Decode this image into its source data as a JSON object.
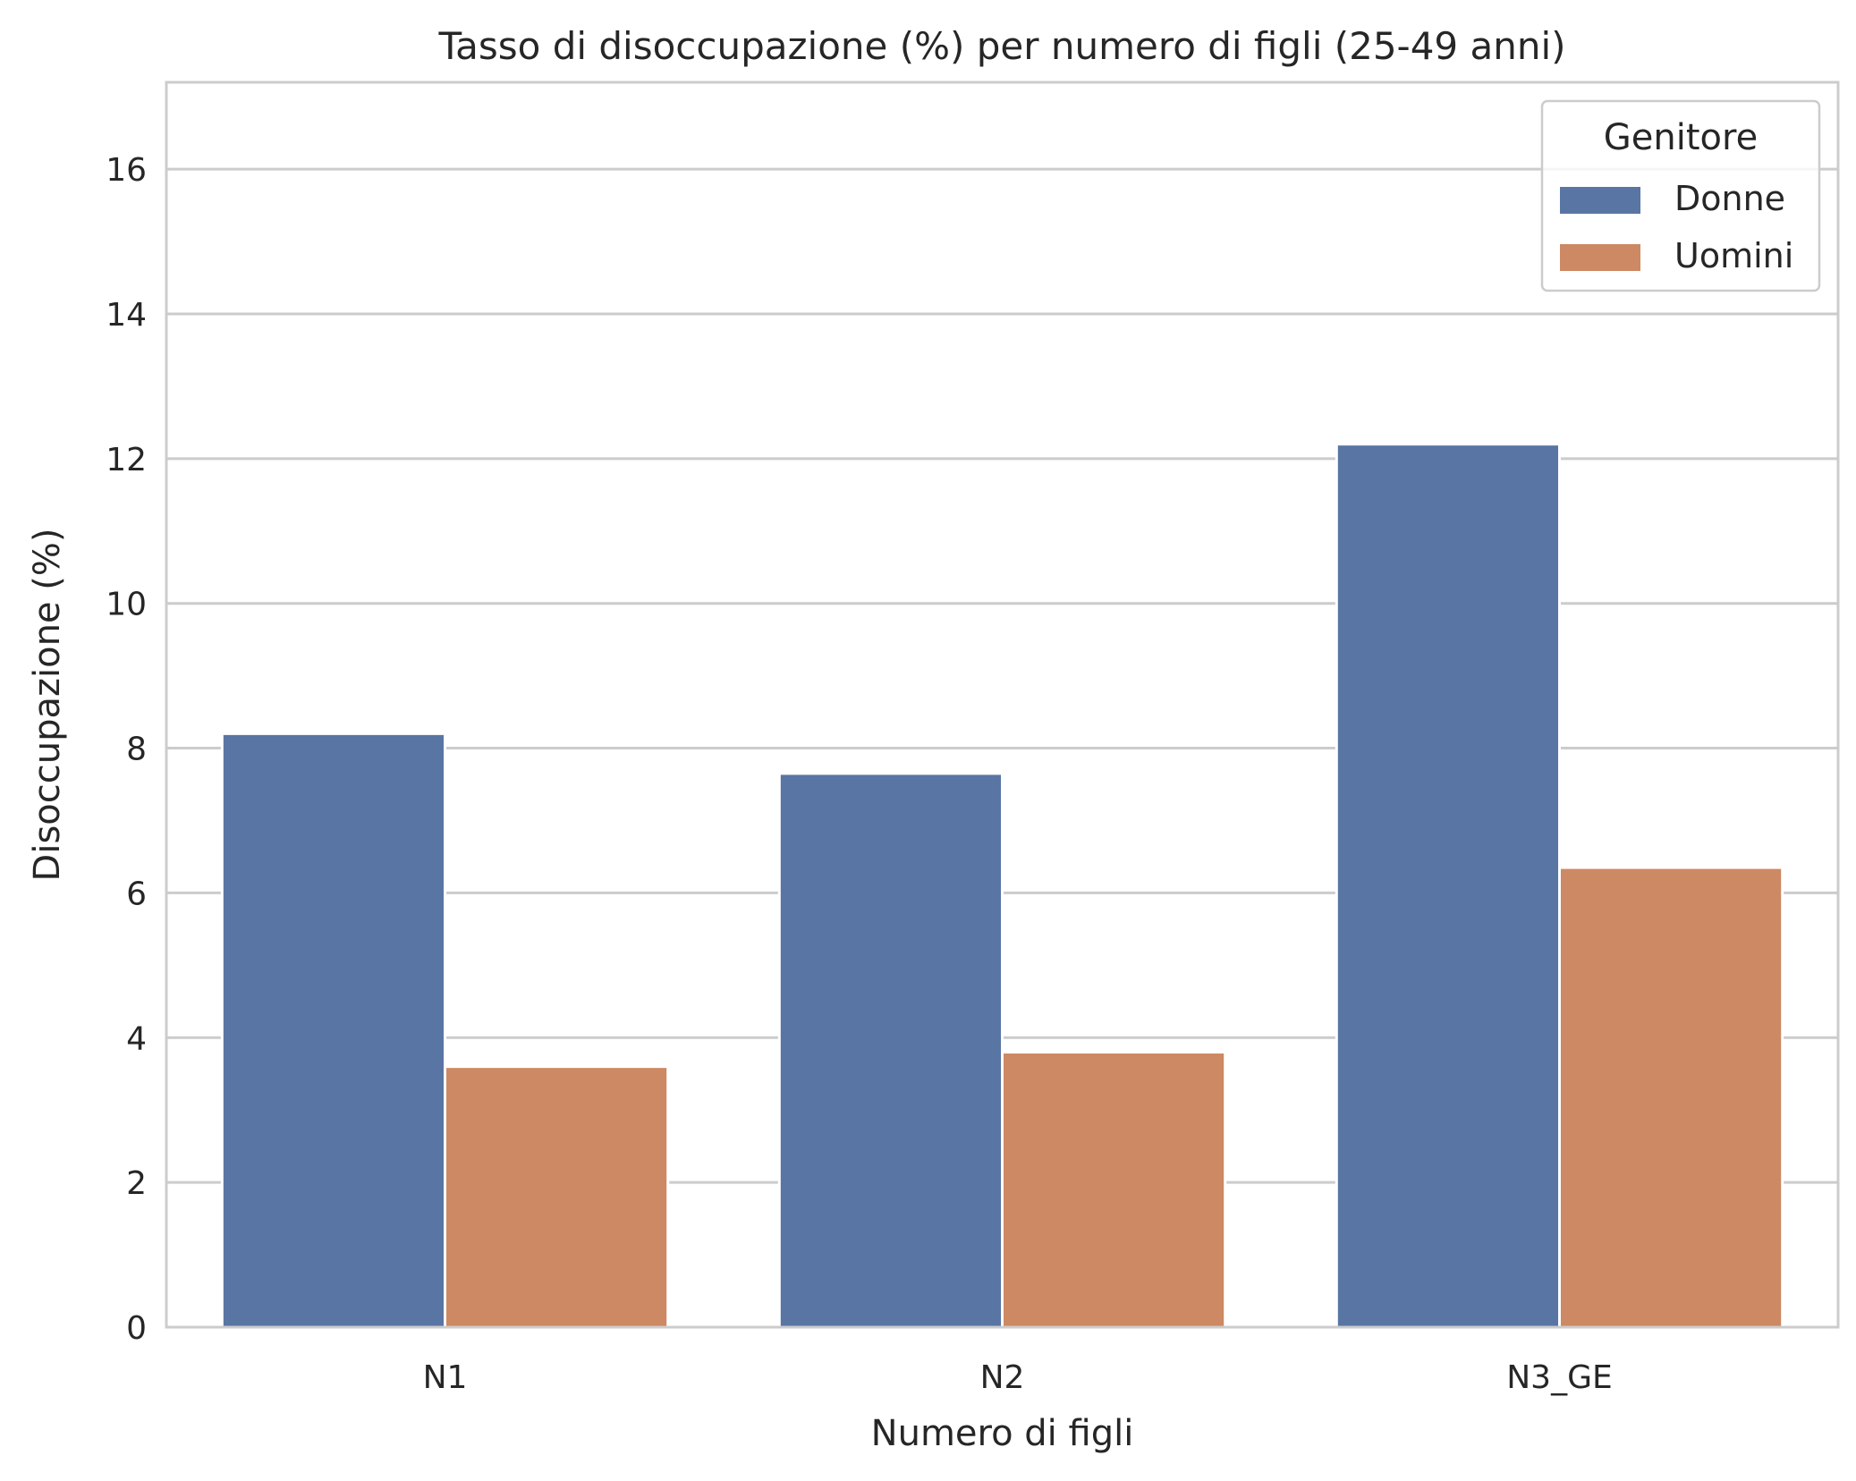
{
  "chart_data": {
    "type": "bar",
    "title": "Tasso di disoccupazione (%) per numero di figli (25-49 anni)",
    "xlabel": "Numero di figli",
    "ylabel": "Disoccupazione (%)",
    "categories": [
      "N1",
      "N2",
      "N3_GE"
    ],
    "series": [
      {
        "name": "Donne",
        "color": "#5975a4",
        "values": [
          8.2,
          7.65,
          12.2
        ]
      },
      {
        "name": "Uomini",
        "color": "#cc8963",
        "values": [
          3.6,
          3.8,
          6.35
        ]
      }
    ],
    "ylim": [
      0,
      17.2
    ],
    "yticks": [
      0,
      2,
      4,
      6,
      8,
      10,
      12,
      14,
      16
    ],
    "grid": "horizontal",
    "legend": {
      "title": "Genitore",
      "placement": "top-right"
    }
  }
}
